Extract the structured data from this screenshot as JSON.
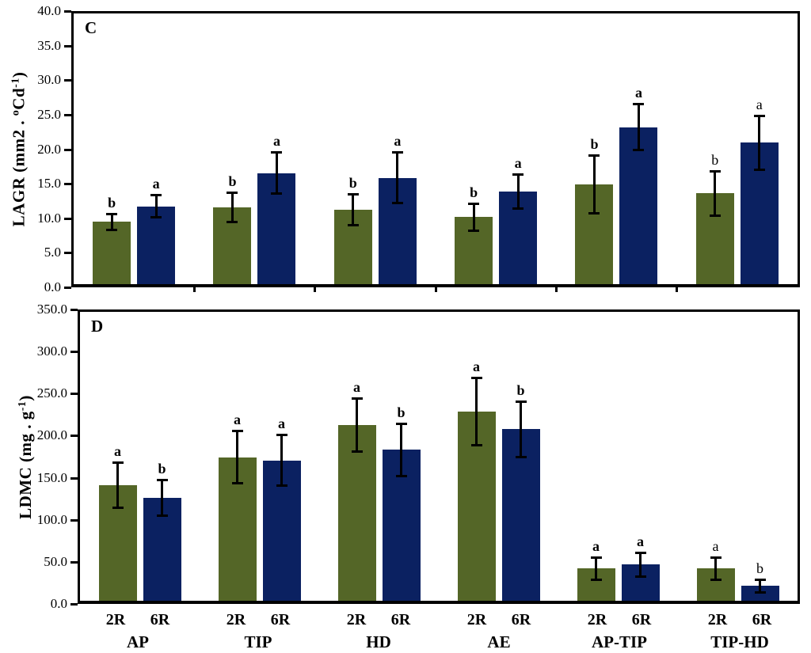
{
  "figure": {
    "background": "#ffffff"
  },
  "colors": {
    "green_2R": "#546627",
    "navy_6R": "#0b2161",
    "axis": "#000000",
    "text": "#000000"
  },
  "chart_data": [
    {
      "panel_label": "C",
      "type": "bar",
      "ylabel_segments": [
        {
          "text": "LAGR (mm2 . "
        },
        {
          "text": "o",
          "sup": true
        },
        {
          "text": "Cd"
        },
        {
          "text": "-1",
          "sup": true
        },
        {
          "text": ")"
        }
      ],
      "ylim": [
        0,
        40
      ],
      "ytick_labels": [
        "40.0",
        "35.0",
        "30.0",
        "25.0",
        "20.0",
        "15.0",
        "10.0",
        "5.0",
        "0.0"
      ],
      "categories": [
        "AP",
        "TIP",
        "HD",
        "AE",
        "AP-TIP",
        "TIP-HD"
      ],
      "grid": false,
      "legend": "none",
      "show_group_labels": false,
      "x_boundary_ticks": true,
      "series": [
        {
          "name": "2R",
          "color_key": "green_2R",
          "values": [
            9.2,
            11.3,
            11.0,
            9.9,
            14.7,
            13.4
          ],
          "errors": [
            1.1,
            2.1,
            2.2,
            1.9,
            4.2,
            3.2
          ],
          "letters": [
            "b",
            "b",
            "b",
            "b",
            "b",
            "b"
          ],
          "letters_bold": [
            true,
            true,
            true,
            true,
            true,
            false
          ]
        },
        {
          "name": "6R",
          "color_key": "navy_6R",
          "values": [
            11.5,
            16.4,
            15.7,
            13.7,
            23.2,
            20.9
          ],
          "errors": [
            1.6,
            3.0,
            3.7,
            2.5,
            3.3,
            3.9
          ],
          "letters": [
            "a",
            "a",
            "a",
            "a",
            "a",
            "a"
          ],
          "letters_bold": [
            true,
            true,
            true,
            true,
            true,
            false
          ]
        }
      ]
    },
    {
      "panel_label": "D",
      "type": "bar",
      "ylabel_segments": [
        {
          "text": "LDMC (mg . g"
        },
        {
          "text": "-1",
          "sup": true
        },
        {
          "text": ")"
        }
      ],
      "ylim": [
        0,
        350
      ],
      "ytick_labels": [
        "350.0",
        "300.0",
        "250.0",
        "200.0",
        "150.0",
        "100.0",
        "50.0",
        "0.0"
      ],
      "categories": [
        "AP",
        "TIP",
        "HD",
        "AE",
        "AP-TIP",
        "TIP-HD"
      ],
      "grid": false,
      "legend": "none",
      "show_group_labels": true,
      "x_boundary_ticks": false,
      "series": [
        {
          "name": "2R",
          "color_key": "green_2R",
          "values": [
            140,
            174,
            213,
            229,
            39,
            39
          ],
          "errors": [
            27,
            31,
            32,
            40,
            13,
            13
          ],
          "letters": [
            "a",
            "a",
            "a",
            "a",
            "a",
            "a"
          ],
          "letters_bold": [
            true,
            true,
            true,
            true,
            true,
            false
          ]
        },
        {
          "name": "6R",
          "color_key": "navy_6R",
          "values": [
            125,
            170,
            183,
            208,
            44,
            18
          ],
          "errors": [
            21,
            30,
            31,
            33,
            14,
            7
          ],
          "letters": [
            "b",
            "a",
            "b",
            "b",
            "a",
            "b"
          ],
          "letters_bold": [
            true,
            true,
            true,
            true,
            true,
            false
          ]
        }
      ]
    }
  ]
}
